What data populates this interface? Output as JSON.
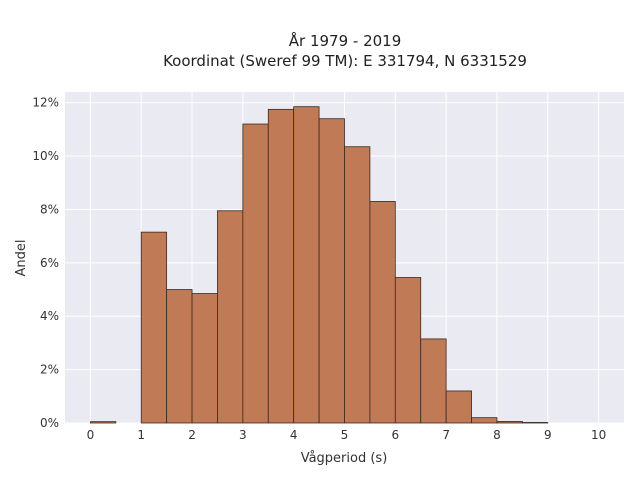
{
  "chart_data": {
    "type": "bar",
    "title": "År 1979 - 2019",
    "subtitle": "Koordinat (Sweref 99 TM): E 331794, N 6331529",
    "xlabel": "Vågperiod (s)",
    "ylabel": "Andel",
    "xlim": [
      -0.5,
      10.5
    ],
    "ylim": [
      0,
      12.4
    ],
    "x_ticks": [
      0,
      1,
      2,
      3,
      4,
      5,
      6,
      7,
      8,
      9,
      10
    ],
    "x_tick_labels": [
      "0",
      "1",
      "2",
      "3",
      "4",
      "5",
      "6",
      "7",
      "8",
      "9",
      "10"
    ],
    "y_ticks": [
      0,
      2,
      4,
      6,
      8,
      10,
      12
    ],
    "y_tick_labels": [
      "0%",
      "2%",
      "4%",
      "6%",
      "8%",
      "10%",
      "12%"
    ],
    "bin_width": 0.5,
    "bins": [
      {
        "start": 0.0,
        "value": 0.05
      },
      {
        "start": 0.5,
        "value": 0.0
      },
      {
        "start": 1.0,
        "value": 7.15
      },
      {
        "start": 1.5,
        "value": 5.0
      },
      {
        "start": 2.0,
        "value": 4.85
      },
      {
        "start": 2.5,
        "value": 7.95
      },
      {
        "start": 3.0,
        "value": 11.2
      },
      {
        "start": 3.5,
        "value": 11.75
      },
      {
        "start": 4.0,
        "value": 11.85
      },
      {
        "start": 4.5,
        "value": 11.4
      },
      {
        "start": 5.0,
        "value": 10.35
      },
      {
        "start": 5.5,
        "value": 8.3
      },
      {
        "start": 6.0,
        "value": 5.45
      },
      {
        "start": 6.5,
        "value": 3.15
      },
      {
        "start": 7.0,
        "value": 1.2
      },
      {
        "start": 7.5,
        "value": 0.2
      },
      {
        "start": 8.0,
        "value": 0.06
      },
      {
        "start": 8.5,
        "value": 0.02
      }
    ],
    "grid": true,
    "colors": {
      "bar_fill": "#c07a55",
      "bar_stroke": "#3a2a20",
      "plot_background": "#eaeaf2",
      "grid": "#ffffff"
    }
  }
}
